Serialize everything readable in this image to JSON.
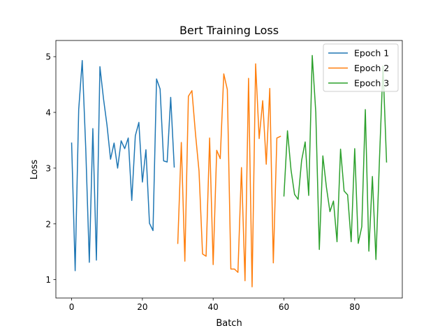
{
  "chart_data": {
    "type": "line",
    "title": "Bert Training Loss",
    "xlabel": "Batch",
    "ylabel": "Loss",
    "xlim": [
      -4.45,
      93.45
    ],
    "ylim": [
      0.67,
      5.29
    ],
    "xticks": [
      0,
      20,
      40,
      60,
      80
    ],
    "yticks": [
      1,
      2,
      3,
      4,
      5
    ],
    "grid": false,
    "legend_position": "top-right",
    "series": [
      {
        "name": "Epoch 1",
        "color": "#1f77b4",
        "x": [
          0,
          1,
          2,
          3,
          4,
          5,
          6,
          7,
          8,
          9,
          10,
          11,
          12,
          13,
          14,
          15,
          16,
          17,
          18,
          19,
          20,
          21,
          22,
          23,
          24,
          25,
          26,
          27,
          28,
          29
        ],
        "values": [
          3.45,
          1.16,
          4.05,
          4.93,
          3.34,
          1.31,
          3.71,
          1.35,
          4.82,
          4.25,
          3.77,
          3.16,
          3.45,
          3.0,
          3.49,
          3.35,
          3.54,
          2.42,
          3.58,
          3.82,
          2.75,
          3.33,
          2.01,
          1.88,
          4.6,
          4.42,
          3.13,
          3.11,
          4.27,
          3.02
        ]
      },
      {
        "name": "Epoch 2",
        "color": "#ff7f0e",
        "x": [
          30,
          31,
          32,
          33,
          34,
          35,
          36,
          37,
          38,
          39,
          40,
          41,
          42,
          43,
          44,
          45,
          46,
          47,
          48,
          49,
          50,
          51,
          52,
          53,
          54,
          55,
          56,
          57,
          58,
          59
        ],
        "values": [
          1.65,
          3.46,
          1.33,
          4.29,
          4.39,
          3.62,
          2.95,
          1.46,
          1.42,
          3.54,
          1.27,
          3.32,
          3.17,
          4.69,
          4.41,
          1.19,
          1.19,
          1.13,
          3.01,
          0.98,
          4.61,
          0.87,
          4.87,
          3.53,
          4.21,
          3.07,
          4.43,
          1.3,
          3.54,
          3.57
        ]
      },
      {
        "name": "Epoch 3",
        "color": "#2ca02c",
        "x": [
          60,
          61,
          62,
          63,
          64,
          65,
          66,
          67,
          68,
          69,
          70,
          71,
          72,
          73,
          74,
          75,
          76,
          77,
          78,
          79,
          80,
          81,
          82,
          83,
          84,
          85,
          86,
          87,
          88,
          89
        ],
        "values": [
          2.5,
          3.67,
          2.97,
          2.53,
          2.44,
          3.14,
          3.47,
          2.51,
          5.02,
          4.0,
          1.54,
          3.22,
          2.66,
          2.22,
          2.41,
          1.68,
          3.34,
          2.59,
          2.52,
          1.68,
          3.35,
          1.65,
          1.95,
          4.05,
          1.51,
          2.85,
          1.36,
          3.16,
          4.83,
          3.11
        ]
      }
    ]
  }
}
